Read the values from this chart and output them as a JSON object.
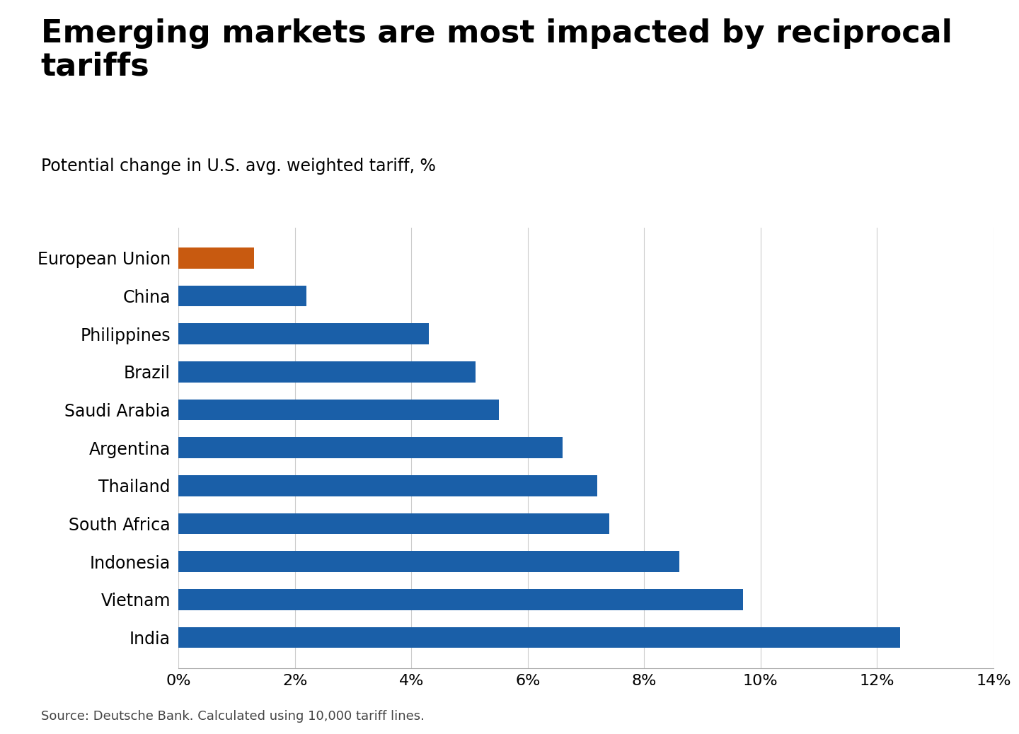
{
  "title_line1": "Emerging markets are most impacted by reciprocal",
  "title_line2": "tariffs",
  "subtitle": "Potential change in U.S. avg. weighted tariff, %",
  "source": "Source: Deutsche Bank. Calculated using 10,000 tariff lines.",
  "categories": [
    "India",
    "Vietnam",
    "Indonesia",
    "South Africa",
    "Thailand",
    "Argentina",
    "Saudi Arabia",
    "Brazil",
    "Philippines",
    "China",
    "European Union"
  ],
  "values": [
    12.4,
    9.7,
    8.6,
    7.4,
    7.2,
    6.6,
    5.5,
    5.1,
    4.3,
    2.2,
    1.3
  ],
  "bar_colors": [
    "#1a5fa8",
    "#1a5fa8",
    "#1a5fa8",
    "#1a5fa8",
    "#1a5fa8",
    "#1a5fa8",
    "#1a5fa8",
    "#1a5fa8",
    "#1a5fa8",
    "#1a5fa8",
    "#c85a10"
  ],
  "xlim": [
    0,
    14
  ],
  "xticks": [
    0,
    2,
    4,
    6,
    8,
    10,
    12,
    14
  ],
  "background_color": "#ffffff",
  "title_fontsize": 32,
  "subtitle_fontsize": 17,
  "label_fontsize": 17,
  "tick_fontsize": 16,
  "source_fontsize": 13
}
